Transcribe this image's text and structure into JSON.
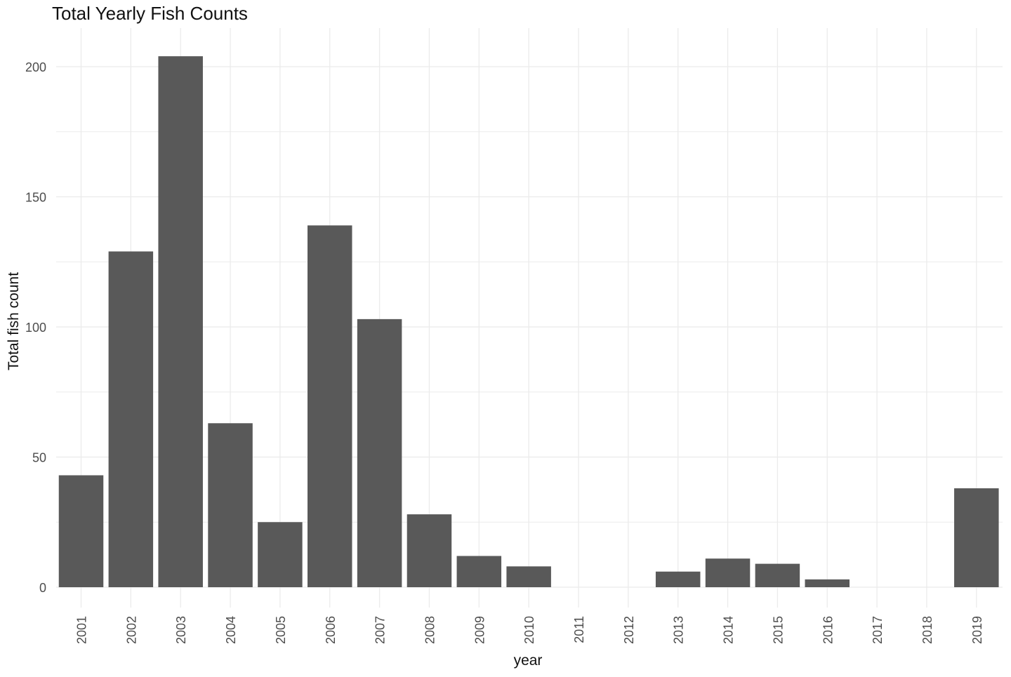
{
  "chart_data": {
    "type": "bar",
    "title": "Total Yearly Fish Counts",
    "xlabel": "year",
    "ylabel": "Total fish count",
    "categories": [
      "2001",
      "2002",
      "2003",
      "2004",
      "2005",
      "2006",
      "2007",
      "2008",
      "2009",
      "2010",
      "2011",
      "2012",
      "2013",
      "2014",
      "2015",
      "2016",
      "2017",
      "2018",
      "2019"
    ],
    "values": [
      43,
      129,
      204,
      63,
      25,
      139,
      103,
      28,
      12,
      8,
      0,
      0,
      6,
      11,
      9,
      3,
      0,
      0,
      38
    ],
    "ylim": [
      0,
      204
    ],
    "yticks": [
      0,
      50,
      100,
      150,
      200
    ],
    "grid": true,
    "bar_color": "#595959",
    "grid_color": "#ebebeb"
  }
}
